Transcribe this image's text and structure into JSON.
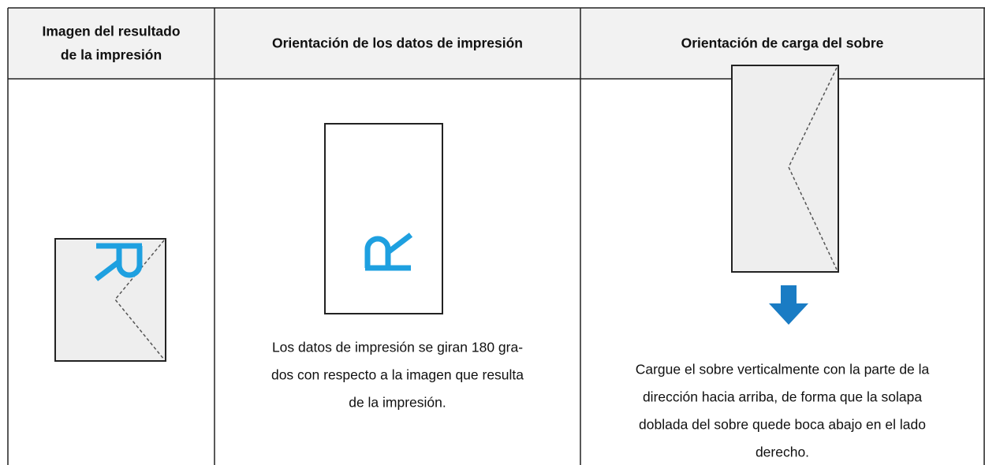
{
  "table": {
    "headers": [
      [
        "Imagen del resultado",
        "de la impresión"
      ],
      [
        "Orientación de los datos de impresión"
      ],
      [
        "Orientación de carga del sobre"
      ]
    ],
    "rows": [
      [
        [],
        [
          "Los datos de impresión se giran 180 gra-",
          "dos con respecto a la imagen que resulta",
          "de la impresión."
        ],
        [
          "Cargue el sobre verticalmente con la parte de la",
          "dirección hacia arriba, de forma que la solapa",
          "doblada del sobre quede boca abajo en el lado",
          "derecho."
        ]
      ]
    ]
  }
}
